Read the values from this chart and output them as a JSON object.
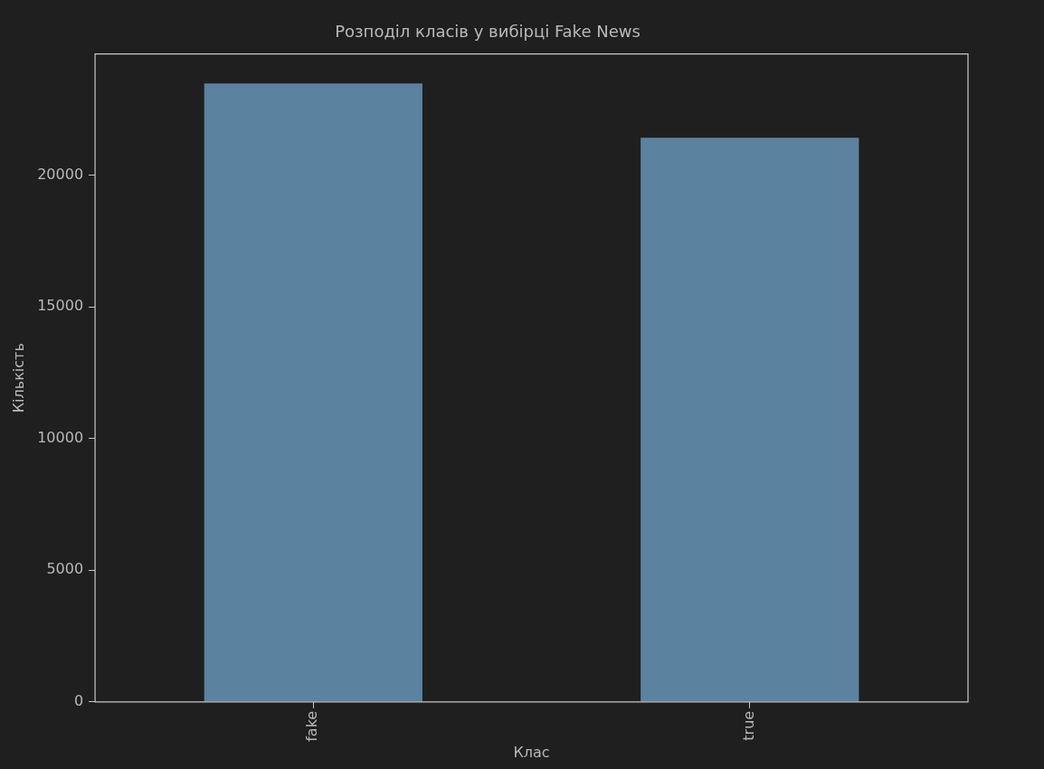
{
  "chart_data": {
    "type": "bar",
    "title": "Розподіл класів у вибірці Fake News",
    "xlabel": "Клас",
    "ylabel": "Кількість",
    "categories": [
      "fake",
      "true"
    ],
    "values": [
      23480,
      21420
    ],
    "color": "#5b829f",
    "ylim": [
      0,
      24600
    ],
    "yticks": [
      0,
      5000,
      10000,
      15000,
      20000
    ],
    "grid": false,
    "legend": false
  }
}
